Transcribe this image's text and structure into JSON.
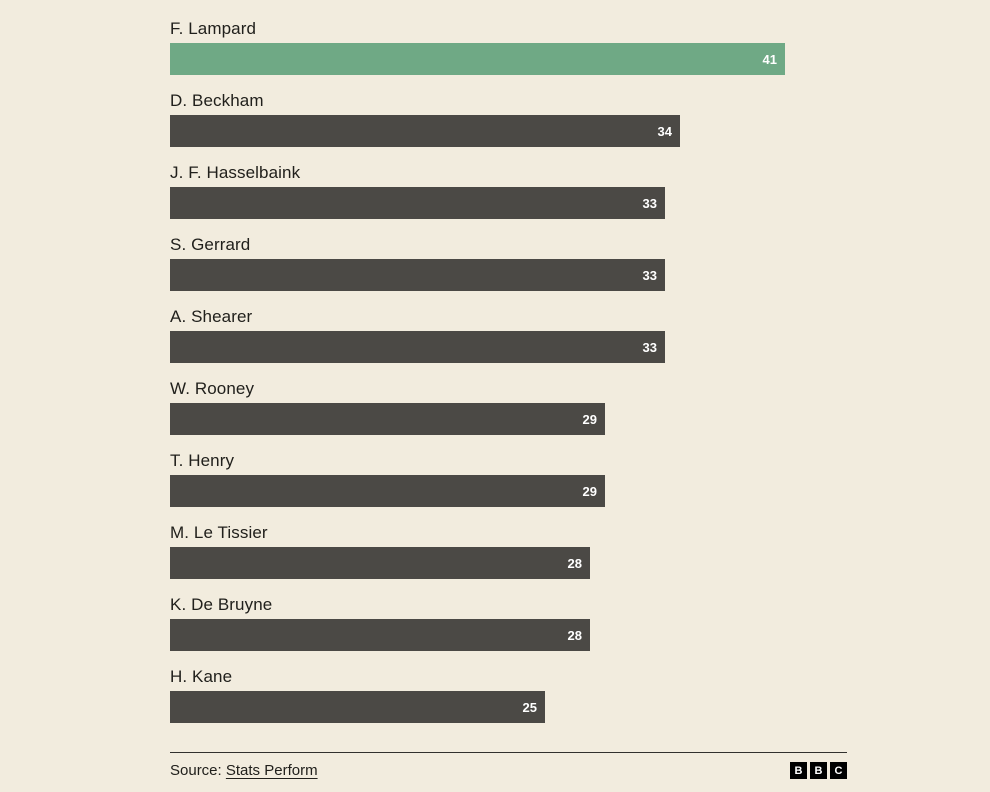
{
  "chart_data": {
    "type": "bar",
    "orientation": "horizontal",
    "title": "",
    "categories": [
      "F. Lampard",
      "D. Beckham",
      "J. F. Hasselbaink",
      "S. Gerrard",
      "A. Shearer",
      "W. Rooney",
      "T. Henry",
      "M. Le Tissier",
      "K. De Bruyne",
      "H. Kane"
    ],
    "values": [
      41,
      34,
      33,
      33,
      33,
      29,
      29,
      28,
      28,
      25
    ],
    "xlim": [
      0,
      45
    ],
    "grid": false,
    "legend": "none",
    "highlight_color": "#6fa985",
    "bar_color": "#4b4945",
    "background_color": "#f2ecde",
    "value_label_color": "#ffffff"
  },
  "footer": {
    "source_prefix": "Source: ",
    "source_link": "Stats Perform",
    "logo_blocks": [
      "B",
      "B",
      "C"
    ]
  }
}
